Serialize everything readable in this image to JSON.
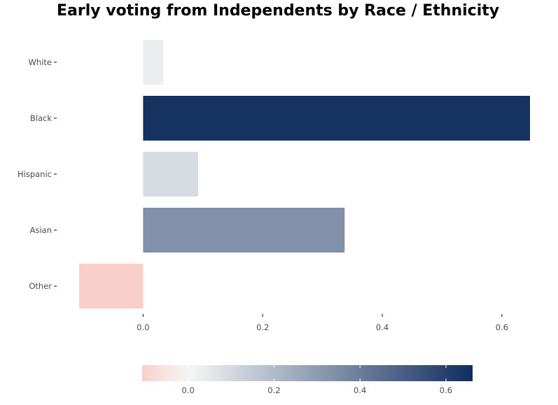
{
  "chart_data": {
    "type": "bar",
    "orientation": "horizontal",
    "title": "Early voting from Independents by Race / Ethnicity",
    "xlabel": "",
    "ylabel": "",
    "categories": [
      "White",
      "Black",
      "Hispanic",
      "Asian",
      "Other"
    ],
    "values": [
      0.034,
      0.647,
      0.092,
      0.337,
      -0.107
    ],
    "xlim": [
      -0.107,
      0.647
    ],
    "xticks": [
      0.0,
      0.2,
      0.4,
      0.6
    ],
    "xtick_labels": [
      "0.0",
      "0.2",
      "0.4",
      "0.6"
    ],
    "grid": false,
    "legend": {
      "type": "colorbar",
      "placement": "bottom",
      "range": [
        -0.107,
        0.662
      ],
      "ticks": [
        0.0,
        0.2,
        0.4,
        0.6
      ],
      "tick_labels": [
        "0.0",
        "0.2",
        "0.4",
        "0.6"
      ]
    },
    "colors": {
      "low": "#f8cfcb",
      "mid": "#f7f7f7",
      "high": "#112d5e"
    }
  }
}
